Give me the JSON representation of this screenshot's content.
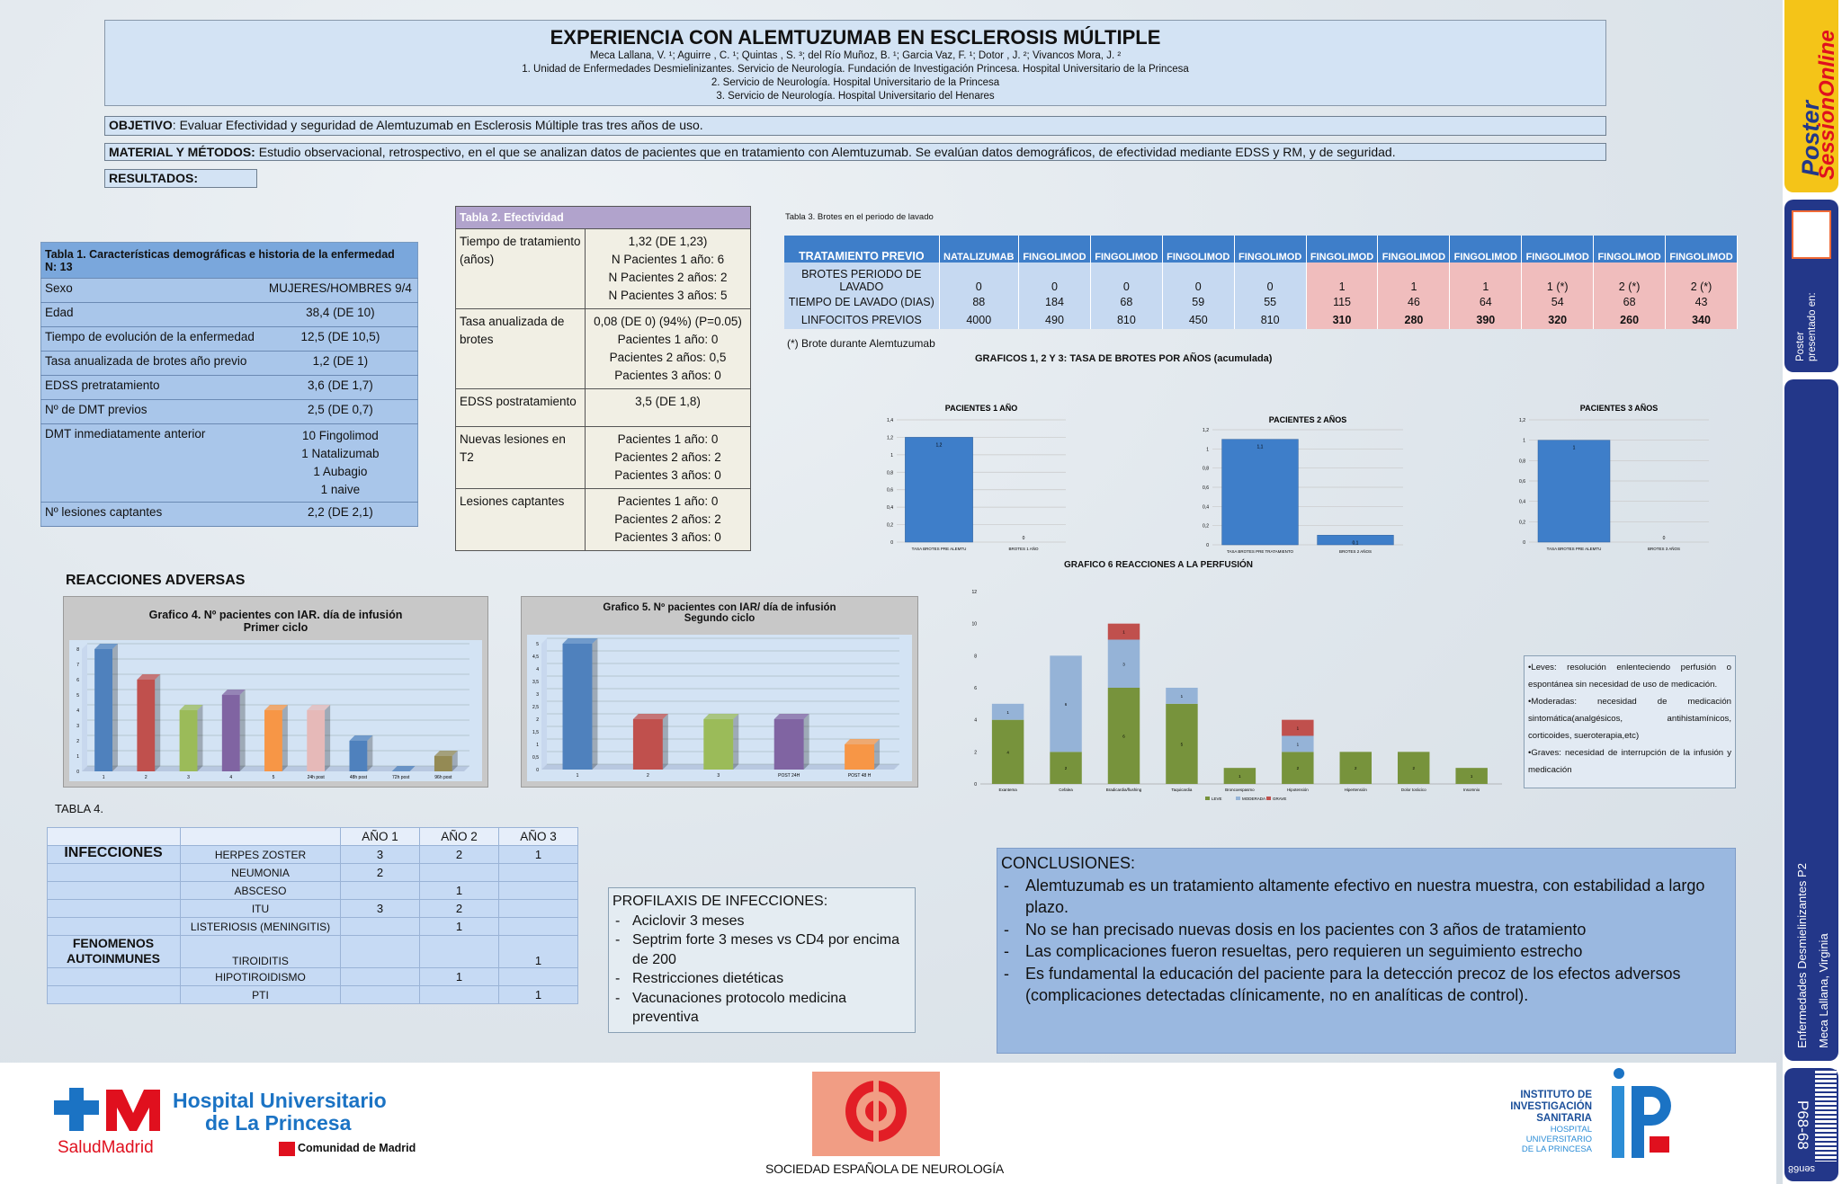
{
  "header": {
    "title": "EXPERIENCIA CON ALEMTUZUMAB EN ESCLEROSIS MÚLTIPLE",
    "authors": "Meca Lallana, V. ¹; Aguirre , C. ¹; Quintas , S. ³; del Río Muñoz, B. ¹; Garcia Vaz, F. ¹; Dotor , J. ²; Vivancos Mora, J. ²",
    "aff1": "1. Unidad de Enfermedades Desmielinizantes. Servicio de Neurología. Fundación de Investigación Princesa. Hospital Universitario de la Princesa",
    "aff2": "2. Servicio de Neurología. Hospital Universitario de la Princesa",
    "aff3": "3. Servicio de Neurología. Hospital Universitario del Henares"
  },
  "objetivo": {
    "label": "OBJETIVO",
    "text": ": Evaluar Efectividad y seguridad de Alemtuzumab en Esclerosis Múltiple tras tres  años de uso."
  },
  "material": {
    "label": "MATERIAL Y MÉTODOS:",
    "text": "  Estudio observacional, retrospectivo, en el que se analizan datos de pacientes que en tratamiento con Alemtuzumab. Se evalúan datos demográficos, de efectividad mediante EDSS y RM, y de seguridad."
  },
  "resultados": {
    "label": "RESULTADOS:"
  },
  "table1": {
    "title": "Tabla 1. Características demográficas e historia de la enfermedad",
    "subtitle": "N: 13",
    "rows": [
      [
        "Sexo",
        "MUJERES/HOMBRES  9/4"
      ],
      [
        "Edad",
        "38,4  (DE 10)"
      ],
      [
        "Tiempo de evolución de la enfermedad",
        "12,5 (DE 10,5)"
      ],
      [
        "Tasa anualizada de brotes año previo",
        "1,2 (DE 1)"
      ],
      [
        "EDSS pretratamiento",
        "3,6  (DE 1,7)"
      ],
      [
        "Nº de DMT previos",
        "2,5  (DE 0,7)"
      ]
    ],
    "dmt_label": "DMT inmediatamente anterior",
    "dmt_values": [
      "10 Fingolimod",
      "1 Natalizumab",
      "1 Aubagio",
      "1 naive"
    ],
    "last": [
      "Nº lesiones captantes",
      "2,2 (DE 2,1)"
    ]
  },
  "table2": {
    "title": "Tabla 2. Efectividad",
    "rows": [
      {
        "label": "Tiempo de tratamiento (años)",
        "values": [
          "1,32 (DE 1,23)",
          "N Pacientes 1 año: 6",
          "N Pacientes 2 años: 2",
          "N Pacientes 3 años: 5"
        ]
      },
      {
        "label": "Tasa anualizada de brotes",
        "values": [
          "0,08 (DE 0) (94%)  (P=0.05)",
          "Pacientes 1 año: 0",
          "Pacientes 2 años: 0,5",
          "Pacientes 3 años: 0"
        ]
      },
      {
        "label": "EDSS postratamiento",
        "values": [
          "3,5 (DE 1,8)"
        ]
      },
      {
        "label": "Nuevas lesiones en T2",
        "values": [
          "Pacientes 1 año: 0",
          "Pacientes 2 años: 2",
          "Pacientes 3 años: 0"
        ]
      },
      {
        "label": "Lesiones captantes",
        "values": [
          "Pacientes 1 año: 0",
          "Pacientes 2 años: 2",
          "Pacientes 3 años: 0"
        ]
      }
    ]
  },
  "table3": {
    "caption": "Tabla 3. Brotes en el periodo de lavado",
    "headers": [
      "TRATAMIENTO PREVIO",
      "NATALIZUMAB",
      "FINGOLIMOD",
      "FINGOLIMOD",
      "FINGOLIMOD",
      "FINGOLIMOD",
      "FINGOLIMOD",
      "FINGOLIMOD",
      "FINGOLIMOD",
      "FINGOLIMOD",
      "FINGOLIMOD",
      "FINGOLIMOD"
    ],
    "rows": [
      [
        "BROTES PERIODO DE LAVADO",
        "0",
        "0",
        "0",
        "0",
        "0",
        "1",
        "1",
        "1",
        "1 (*)",
        "2 (*)",
        "2 (*)"
      ],
      [
        "TIEMPO DE LAVADO (DIAS)",
        "88",
        "184",
        "68",
        "59",
        "55",
        "115",
        "46",
        "64",
        "54",
        "68",
        "43"
      ],
      [
        "LINFOCITOS PREVIOS",
        "4000",
        "490",
        "810",
        "450",
        "810",
        "310",
        "280",
        "390",
        "320",
        "260",
        "340"
      ]
    ],
    "note": "(*) Brote durante Alemtuzumab"
  },
  "graficos123": {
    "title": "GRAFICOS 1, 2 Y 3:  TASA DE BROTES POR AÑOS (acumulada)"
  },
  "grafico6": {
    "title": "GRAFICO 6 REACCIONES A LA PERFUSIÓN"
  },
  "reacciones": {
    "title": "REACCIONES ADVERSAS"
  },
  "g4": {
    "title1": "Grafico 4. Nº pacientes con IAR. día de infusión",
    "title2": "Primer ciclo"
  },
  "g5": {
    "title1": "Grafico 5. Nº pacientes con IAR/ día de infusión",
    "title2": "Segundo ciclo"
  },
  "chart_data": [
    {
      "type": "bar",
      "title": "PACIENTES 1 AÑO",
      "categories": [
        "TASA BROTES PRE ALEMTU",
        "BROTES 1 AÑO"
      ],
      "values": [
        1.2,
        0
      ],
      "ylim": [
        0,
        1.4
      ],
      "yticks": [
        "0",
        "0,2",
        "0,4",
        "0,6",
        "0,8",
        "1",
        "1,2",
        "1,4"
      ],
      "data_labels": [
        "1,2",
        "0"
      ]
    },
    {
      "type": "bar",
      "title": "PACIENTES 2 AÑOS",
      "categories": [
        "TASA BROTES PRE TRATAMIENTO",
        "BROTES 2 AÑOS"
      ],
      "values": [
        1.1,
        0.1
      ],
      "ylim": [
        0,
        1.2
      ],
      "yticks": [
        "0",
        "0,2",
        "0,4",
        "0,6",
        "0,8",
        "1",
        "1,2"
      ],
      "data_labels": [
        "1,1",
        "0,1"
      ]
    },
    {
      "type": "bar",
      "title": "PACIENTES 3 AÑOS",
      "categories": [
        "TASA BROTES PRE ALEMTU",
        "BROTES 3 AÑOS"
      ],
      "values": [
        1,
        0
      ],
      "ylim": [
        0,
        1.2
      ],
      "yticks": [
        "0",
        "0,2",
        "0,4",
        "0,6",
        "0,8",
        "1",
        "1,2"
      ],
      "data_labels": [
        "1",
        "0"
      ]
    },
    {
      "type": "bar",
      "title": "Grafico 4. Nº pacientes con IAR. día de infusión Primer ciclo",
      "categories": [
        "1",
        "2",
        "3",
        "4",
        "5",
        "24h post",
        "48h post",
        "72h post",
        "96h post"
      ],
      "values": [
        8,
        6,
        4,
        5,
        4,
        4,
        2,
        0,
        1
      ],
      "colors": [
        "#4f81bd",
        "#c0504d",
        "#9bbb59",
        "#8064a2",
        "#f79646",
        "#e6b9b8",
        "#4f81bd",
        "#4f81bd",
        "#948a54"
      ],
      "ylim": [
        0,
        8
      ],
      "yticks": [
        "0",
        "1",
        "2",
        "3",
        "4",
        "5",
        "6",
        "7",
        "8"
      ]
    },
    {
      "type": "bar",
      "title": "Grafico 5. Nº pacientes con IAR/ día de infusión Segundo ciclo",
      "categories": [
        "1",
        "2",
        "3",
        "POST 24H",
        "POST 48 H"
      ],
      "values": [
        5,
        2,
        2,
        2,
        1
      ],
      "colors": [
        "#4f81bd",
        "#c0504d",
        "#9bbb59",
        "#8064a2",
        "#f79646"
      ],
      "ylim": [
        0,
        5
      ],
      "yticks": [
        "0",
        "0,5",
        "1",
        "1,5",
        "2",
        "2,5",
        "3",
        "3,5",
        "4",
        "4,5",
        "5"
      ]
    },
    {
      "type": "bar",
      "stacked": true,
      "title": "GRAFICO 6 REACCIONES A LA PERFUSIÓN",
      "categories": [
        "Exantema",
        "Cefalea",
        "Bradicardia/flushing",
        "Taquicardia",
        "Broncoespasmo",
        "Hipotensión",
        "Hipertensión",
        "Dolor torácico",
        "Insomnio"
      ],
      "series": [
        {
          "name": "LEVE",
          "color": "#77933c",
          "values": [
            4,
            2,
            6,
            5,
            1,
            2,
            2,
            2,
            1
          ]
        },
        {
          "name": "MODERADA",
          "color": "#95b3d7",
          "values": [
            1,
            6,
            3,
            1,
            0,
            1,
            0,
            0,
            0
          ]
        },
        {
          "name": "GRAVE",
          "color": "#c0504d",
          "values": [
            0,
            0,
            1,
            0,
            0,
            1,
            0,
            0,
            0
          ]
        }
      ],
      "ylim": [
        0,
        12
      ],
      "yticks": [
        "0",
        "2",
        "4",
        "6",
        "8",
        "10",
        "12"
      ]
    }
  ],
  "g6legend": {
    "leves": "•Leves: resolución enlenteciendo perfusión o espontánea sin necesidad de uso de medicación.",
    "moderadas": "•Moderadas: necesidad de medicación sintomática(analgésicos, antihistamínicos, corticoides, sueroterapia,etc)",
    "graves": "•Graves: necesidad de interrupción de la infusión y medicación"
  },
  "table4": {
    "label": "TABLA 4.",
    "years": [
      "AÑO 1",
      "AÑO 2",
      "AÑO 3"
    ],
    "sect1": "INFECCIONES",
    "sect2": "FENOMENOS AUTOINMUNES",
    "rows": [
      [
        "HERPES ZOSTER",
        "3",
        "2",
        "1"
      ],
      [
        "NEUMONIA",
        "2",
        "",
        ""
      ],
      [
        "ABSCESO",
        "",
        "1",
        ""
      ],
      [
        "ITU",
        "3",
        "2",
        ""
      ],
      [
        "LISTERIOSIS (MENINGITIS)",
        "",
        "1",
        ""
      ],
      [
        "TIROIDITIS",
        "",
        "",
        "1"
      ],
      [
        "HIPOTIROIDISMO",
        "",
        "1",
        ""
      ],
      [
        "PTI",
        "",
        "",
        "1"
      ]
    ]
  },
  "profilaxis": {
    "title": "PROFILAXIS DE INFECCIONES:",
    "items": [
      "Aciclovir 3 meses",
      "Septrim forte 3 meses vs CD4 por encima de 200",
      "Restricciones dietéticas",
      "Vacunaciones protocolo medicina preventiva"
    ]
  },
  "conclusiones": {
    "title": "CONCLUSIONES:",
    "items": [
      "Alemtuzumab es un tratamiento altamente efectivo en nuestra muestra, con estabilidad a largo plazo.",
      "No se han precisado nuevas dosis en los pacientes con 3 años de tratamiento",
      "Las complicaciones fueron resueltas, pero requieren un seguimiento estrecho",
      "Es fundamental la educación del paciente para la detección precoz de los efectos adversos (complicaciones detectadas clínicamente, no en analíticas de control)."
    ]
  },
  "logos": {
    "hospital1": "Hospital Universitario",
    "hospital2": "de La Princesa",
    "salud": "SaludMadrid",
    "comunidad": "Comunidad de Madrid",
    "sen": "SOCIEDAD ESPAÑOLA DE NEUROLOGÍA",
    "inst1": "INSTITUTO DE",
    "inst2": "INVESTIGACIÓN",
    "inst3": "SANITARIA",
    "inst4": "HOSPITAL",
    "inst5": "UNIVERSITARIO",
    "inst6": "DE LA PRINCESA"
  },
  "sidebar": {
    "brand1": "Poster",
    "brand2": "SessionOnline",
    "presented": "Poster presentado en:",
    "section": "Enfermedades Desmielinizantes P2",
    "author": "Meca Lallana, Virginia",
    "code": "P68-68",
    "code2": "sen68"
  }
}
